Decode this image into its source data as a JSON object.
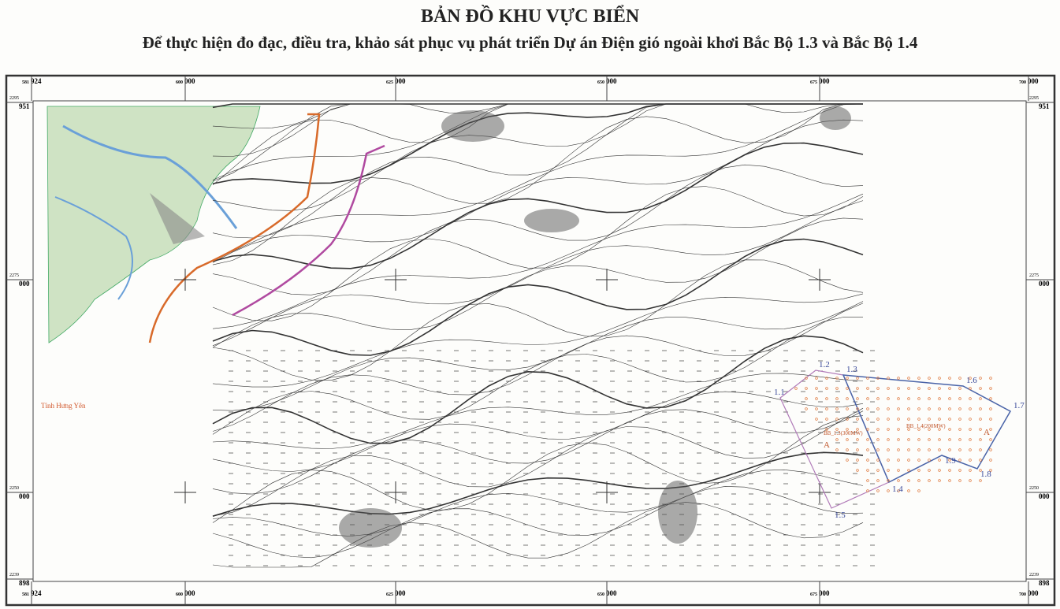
{
  "header": {
    "title": "BẢN ĐỒ KHU VỰC BIỂN",
    "subtitle": "Để thực hiện đo đạc, điều tra, khảo sát phục vụ phát triển Dự án Điện gió ngoài khơi Bắc Bộ 1.3 và Bắc Bộ 1.4"
  },
  "frame": {
    "x_labels": [
      {
        "small": "581",
        "big": "924"
      },
      {
        "small": "600",
        "big": "000"
      },
      {
        "small": "625",
        "big": "000"
      },
      {
        "small": "650",
        "big": "000"
      },
      {
        "small": "675",
        "big": "000"
      },
      {
        "small": "700",
        "big": "000"
      }
    ],
    "y_labels": [
      {
        "small": "2295",
        "big": "951"
      },
      {
        "small": "2275",
        "big": "000"
      },
      {
        "small": "2250",
        "big": "000"
      },
      {
        "small": "2239",
        "big": "898"
      }
    ]
  },
  "places": [
    "Tỉnh Hưng Yên"
  ],
  "points": [
    "1.1",
    "1.2",
    "1.3",
    "1.4",
    "1.5",
    "1.6",
    "1.7",
    "1.8",
    "1.9"
  ],
  "zones": [
    {
      "name": "BB_1.3(300MW)",
      "mark": "A"
    },
    {
      "name": "BB_1.4(200MW)",
      "mark": "A"
    }
  ]
}
